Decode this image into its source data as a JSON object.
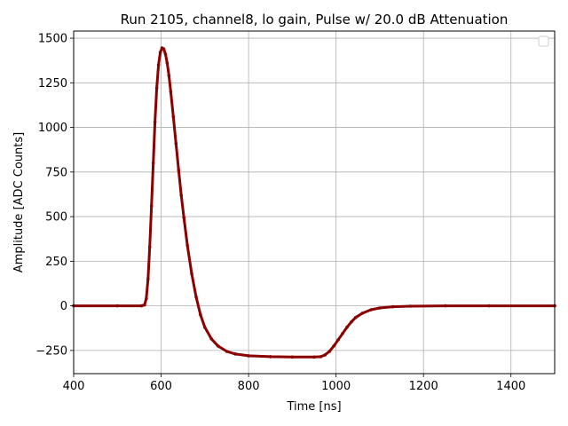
{
  "chart_data": {
    "type": "scatter",
    "title": "Run 2105, channel8, lo gain, Pulse w/ 20.0 dB Attenuation",
    "xlabel": "Time [ns]",
    "ylabel": "Amplitude [ADC Counts]",
    "xlim": [
      400,
      1500
    ],
    "ylim": [
      -380,
      1540
    ],
    "xticks": [
      400,
      600,
      800,
      1000,
      1200,
      1400
    ],
    "yticks": [
      -250,
      0,
      250,
      500,
      750,
      1000,
      1250,
      1500
    ],
    "xtick_labels": [
      "400",
      "600",
      "800",
      "1000",
      "1200",
      "1400"
    ],
    "ytick_labels": [
      "−250",
      "0",
      "250",
      "500",
      "750",
      "1000",
      "1250",
      "1500"
    ],
    "grid": true,
    "legend": {
      "placement": "top-right",
      "entries": []
    },
    "series": [
      {
        "color": "#8b0000",
        "points": [
          [
            400,
            0
          ],
          [
            500,
            0
          ],
          [
            555,
            0
          ],
          [
            562,
            5
          ],
          [
            566,
            40
          ],
          [
            570,
            150
          ],
          [
            574,
            330
          ],
          [
            578,
            560
          ],
          [
            582,
            800
          ],
          [
            586,
            1030
          ],
          [
            590,
            1220
          ],
          [
            594,
            1350
          ],
          [
            598,
            1420
          ],
          [
            602,
            1445
          ],
          [
            606,
            1440
          ],
          [
            610,
            1410
          ],
          [
            614,
            1360
          ],
          [
            618,
            1290
          ],
          [
            622,
            1200
          ],
          [
            628,
            1060
          ],
          [
            634,
            910
          ],
          [
            640,
            760
          ],
          [
            646,
            620
          ],
          [
            652,
            495
          ],
          [
            660,
            340
          ],
          [
            670,
            180
          ],
          [
            680,
            50
          ],
          [
            690,
            -50
          ],
          [
            700,
            -120
          ],
          [
            715,
            -185
          ],
          [
            730,
            -225
          ],
          [
            750,
            -255
          ],
          [
            770,
            -270
          ],
          [
            800,
            -280
          ],
          [
            850,
            -285
          ],
          [
            900,
            -287
          ],
          [
            950,
            -287
          ],
          [
            965,
            -285
          ],
          [
            975,
            -275
          ],
          [
            985,
            -255
          ],
          [
            995,
            -225
          ],
          [
            1005,
            -190
          ],
          [
            1015,
            -155
          ],
          [
            1025,
            -120
          ],
          [
            1035,
            -90
          ],
          [
            1045,
            -65
          ],
          [
            1060,
            -42
          ],
          [
            1080,
            -22
          ],
          [
            1100,
            -12
          ],
          [
            1130,
            -5
          ],
          [
            1170,
            -2
          ],
          [
            1250,
            0
          ],
          [
            1350,
            0
          ],
          [
            1500,
            0
          ]
        ]
      }
    ]
  }
}
